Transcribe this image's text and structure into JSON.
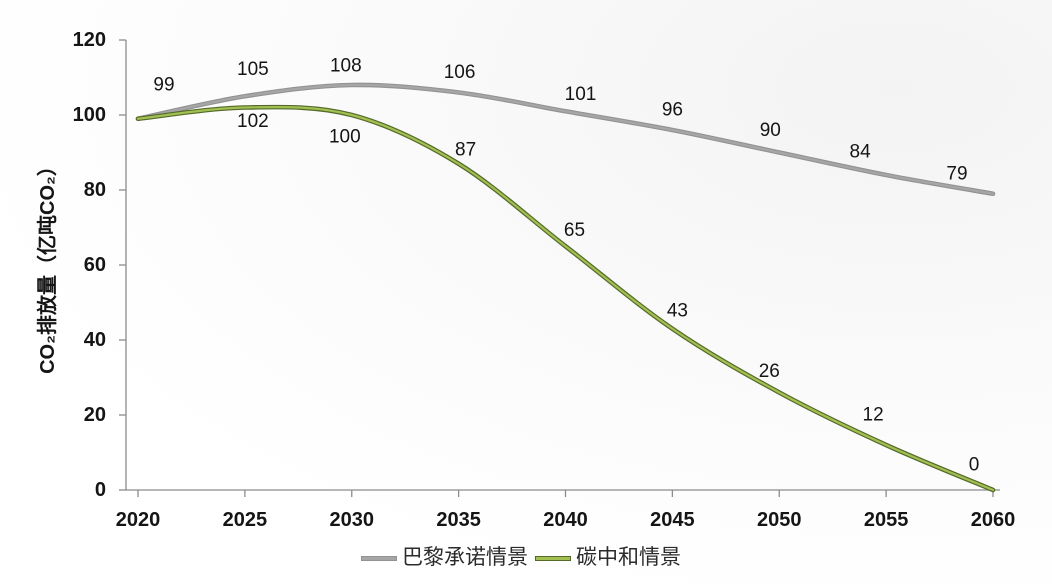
{
  "chart_data": {
    "type": "line",
    "title": "",
    "xlabel": "",
    "ylabel": "CO₂排放量（亿吨CO₂）",
    "x": [
      2020,
      2025,
      2030,
      2035,
      2040,
      2045,
      2050,
      2055,
      2060
    ],
    "xlim": [
      2020,
      2060
    ],
    "ylim": [
      0,
      120
    ],
    "yticks": [
      0,
      20,
      40,
      60,
      80,
      100,
      120
    ],
    "grid": false,
    "smooth": true,
    "data_labels": true,
    "legend": "bottom",
    "series": [
      {
        "name": "巴黎承诺情景",
        "color": "#a6a6a6",
        "edge_color": "#939393",
        "values": [
          99,
          105,
          108,
          106,
          101,
          96,
          90,
          84,
          79
        ]
      },
      {
        "name": "碳中和情景",
        "color": "#a2c052",
        "edge_color": "#55692a",
        "values": [
          99,
          102,
          100,
          87,
          65,
          43,
          26,
          12,
          0
        ]
      }
    ]
  }
}
